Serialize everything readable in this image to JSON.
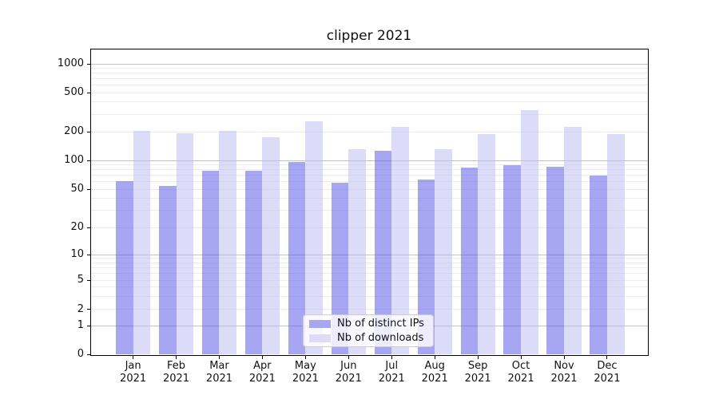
{
  "title": "clipper 2021",
  "legend": {
    "items": [
      {
        "label": "Nb of distinct IPs",
        "swatch_color": "#a6a6f1"
      },
      {
        "label": "Nb of downloads",
        "swatch_color": "#dcdcf8"
      }
    ]
  },
  "chart_data": {
    "type": "bar",
    "title": "clipper 2021",
    "categories": [
      "Jan 2021",
      "Feb 2021",
      "Mar 2021",
      "Apr 2021",
      "May 2021",
      "Jun 2021",
      "Jul 2021",
      "Aug 2021",
      "Sep 2021",
      "Oct 2021",
      "Nov 2021",
      "Dec 2021"
    ],
    "months": [
      "Jan",
      "Feb",
      "Mar",
      "Apr",
      "May",
      "Jun",
      "Jul",
      "Aug",
      "Sep",
      "Oct",
      "Nov",
      "Dec"
    ],
    "year_label": "2021",
    "series": [
      {
        "name": "Nb of distinct IPs",
        "fill": "rgba(77,77,230,0.5)",
        "solid_color": "#a6a6f1",
        "values": [
          61,
          54,
          78,
          78,
          97,
          58,
          126,
          63,
          84,
          89,
          86,
          69
        ]
      },
      {
        "name": "Nb of downloads",
        "fill": "rgba(185,185,241,0.5)",
        "solid_color": "#dcdcf8",
        "values": [
          202,
          192,
          205,
          175,
          255,
          131,
          224,
          131,
          189,
          333,
          224,
          189
        ]
      }
    ],
    "yscale": "symlog",
    "y_ticks": [
      0,
      1,
      2,
      5,
      10,
      20,
      50,
      100,
      200,
      500,
      1000
    ],
    "y_minor_gridlines": [
      2,
      3,
      4,
      5,
      6,
      7,
      8,
      9,
      20,
      30,
      40,
      50,
      60,
      70,
      80,
      90,
      200,
      300,
      400,
      500,
      600,
      700,
      800,
      900
    ],
    "y_major_gridlines": [
      1,
      10,
      100,
      1000
    ],
    "ylim": [
      0,
      1450
    ],
    "grid": "horizontal",
    "legend_position": "lower-center"
  },
  "colors": {
    "axes_spine": "#000000",
    "major_grid": "#c3c3c3",
    "minor_grid": "#ececec",
    "legend_border": "#cccccc",
    "text": "#111111"
  }
}
